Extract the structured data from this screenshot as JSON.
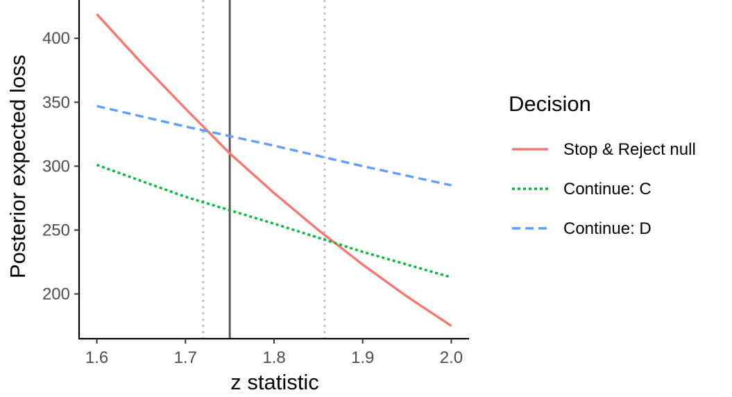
{
  "chart_data": {
    "type": "line",
    "xlabel": "z statistic",
    "ylabel": "Posterior expected loss",
    "xlim": [
      1.58,
      2.02
    ],
    "ylim": [
      165,
      430
    ],
    "x_ticks": [
      1.6,
      1.7,
      1.8,
      1.9,
      2.0
    ],
    "x_tick_labels": [
      "1.6",
      "1.7",
      "1.8",
      "1.9",
      "2.0"
    ],
    "y_ticks": [
      200,
      250,
      300,
      350,
      400
    ],
    "y_tick_labels": [
      "200",
      "250",
      "300",
      "350",
      "400"
    ],
    "grid": false,
    "legend": {
      "title": "Decision",
      "position": "right"
    },
    "series": [
      {
        "name": "Stop & Reject null",
        "color": "#F8766D",
        "linestyle": "solid",
        "x": [
          1.6,
          1.65,
          1.7,
          1.75,
          1.8,
          1.85,
          1.9,
          1.95,
          2.0
        ],
        "y": [
          419,
          381,
          345,
          310,
          279,
          250,
          223,
          198,
          175
        ]
      },
      {
        "name": "Continue: C",
        "color": "#00BA38",
        "linestyle": "dotted",
        "x": [
          1.6,
          1.7,
          1.8,
          1.9,
          2.0
        ],
        "y": [
          301,
          276,
          255,
          233,
          213
        ]
      },
      {
        "name": "Continue: D",
        "color": "#619CFF",
        "linestyle": "dashed",
        "x": [
          1.6,
          1.7,
          1.8,
          1.9,
          2.0
        ],
        "y": [
          347,
          331,
          316,
          300,
          285
        ]
      }
    ],
    "reference_lines": [
      {
        "x": 1.72,
        "style": "dotted",
        "color": "#bebebe"
      },
      {
        "x": 1.75,
        "style": "solid",
        "color": "#595959"
      },
      {
        "x": 1.857,
        "style": "dotted",
        "color": "#bebebe"
      }
    ]
  }
}
